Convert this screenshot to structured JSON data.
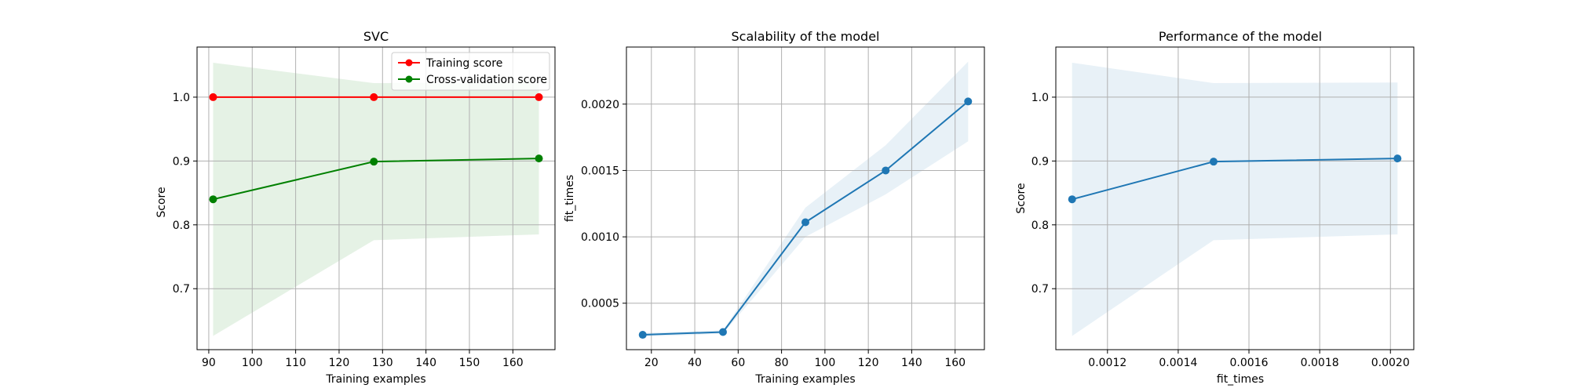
{
  "chart_data": [
    {
      "type": "line",
      "title": "SVC",
      "xlabel": "Training examples",
      "ylabel": "Score",
      "xlim": [
        87.3,
        169.7
      ],
      "ylim": [
        0.6045,
        1.0785
      ],
      "xticks": [
        90,
        100,
        110,
        120,
        130,
        140,
        150,
        160
      ],
      "yticks": [
        0.7,
        0.8,
        0.9,
        1.0
      ],
      "yticks_labels": [
        "0.7",
        "0.8",
        "0.9",
        "1.0"
      ],
      "grid": true,
      "legend": "upper right",
      "series": [
        {
          "name": "Training score",
          "color": "#ff0000",
          "x": [
            91,
            128,
            166
          ],
          "y": [
            1.0,
            1.0,
            1.0
          ],
          "band_lower": [
            1.0,
            1.0,
            1.0
          ],
          "band_upper": [
            1.0,
            1.0,
            1.0
          ],
          "band_color": "#ff0000"
        },
        {
          "name": "Cross-validation score",
          "color": "#008000",
          "x": [
            91,
            128,
            166
          ],
          "y": [
            0.84,
            0.899,
            0.904
          ],
          "band_lower": [
            0.626,
            0.776,
            0.785
          ],
          "band_upper": [
            1.054,
            1.022,
            1.023
          ],
          "band_color": "#008000"
        }
      ]
    },
    {
      "type": "line",
      "title": "Scalability of the model",
      "xlabel": "Training examples",
      "ylabel": "fit_times",
      "xlim": [
        8.5,
        173.5
      ],
      "ylim": [
        0.00015,
        0.00243
      ],
      "xticks": [
        20,
        40,
        60,
        80,
        100,
        120,
        140,
        160
      ],
      "yticks": [
        0.0005,
        0.001,
        0.0015,
        0.002
      ],
      "yticks_labels": [
        "0.0005",
        "0.0010",
        "0.0015",
        "0.0020"
      ],
      "grid": true,
      "series": [
        {
          "color": "#1f77b4",
          "x": [
            16,
            53,
            91,
            128,
            166
          ],
          "y": [
            0.000262,
            0.000283,
            0.00111,
            0.0015,
            0.00202
          ],
          "band_lower": [
            0.000248,
            0.00027,
            0.001,
            0.00132,
            0.00172
          ],
          "band_upper": [
            0.000276,
            0.000296,
            0.00122,
            0.00169,
            0.00232
          ],
          "band_color": "#1f77b4"
        }
      ]
    },
    {
      "type": "line",
      "title": "Performance of the model",
      "xlabel": "fit_times",
      "ylabel": "Score",
      "xlim": [
        0.001054,
        0.002066
      ],
      "ylim": [
        0.6045,
        1.0785
      ],
      "xticks": [
        0.0012,
        0.0014,
        0.0016,
        0.0018,
        0.002
      ],
      "xticks_labels": [
        "0.0012",
        "0.0014",
        "0.0016",
        "0.0018",
        "0.0020"
      ],
      "yticks": [
        0.7,
        0.8,
        0.9,
        1.0
      ],
      "yticks_labels": [
        "0.7",
        "0.8",
        "0.9",
        "1.0"
      ],
      "grid": true,
      "series": [
        {
          "color": "#1f77b4",
          "x": [
            0.0011,
            0.0015,
            0.00202
          ],
          "y": [
            0.84,
            0.899,
            0.904
          ],
          "band_lower": [
            0.626,
            0.776,
            0.785
          ],
          "band_upper": [
            1.054,
            1.022,
            1.023
          ],
          "band_color": "#1f77b4"
        }
      ]
    }
  ]
}
